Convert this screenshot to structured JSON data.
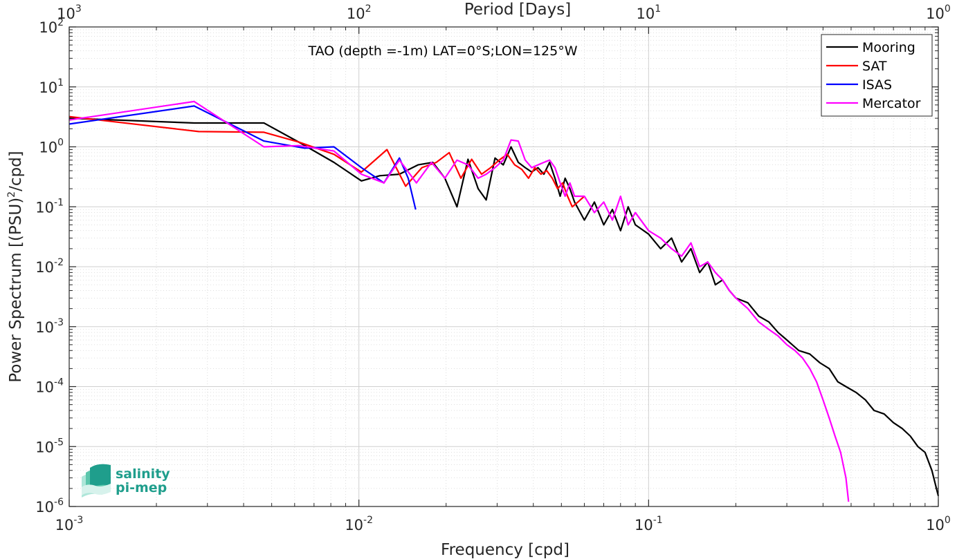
{
  "chart_data": {
    "type": "line",
    "title": "TAO (depth =-1m) LAT=0°S;LON=125°W",
    "xlabel": "Frequency [cpd]",
    "ylabel": "Power Spectrum [(PSU)²/cpd]",
    "ylabel_parts": {
      "pre": "Power Spectrum [(PSU)",
      "sup": "2",
      "post": "/cpd]"
    },
    "top_xlabel": "Period [Days]",
    "xscale": "log",
    "yscale": "log",
    "xlim": [
      0.001,
      1
    ],
    "ylim": [
      1e-06,
      100
    ],
    "grid": true,
    "minor_grid": true,
    "legend_position": "top-right",
    "x_ticks": [
      {
        "value": 0.001,
        "base": "10",
        "exp": "-3"
      },
      {
        "value": 0.01,
        "base": "10",
        "exp": "-2"
      },
      {
        "value": 0.1,
        "base": "10",
        "exp": "-1"
      },
      {
        "value": 1,
        "base": "10",
        "exp": "0"
      }
    ],
    "top_ticks": [
      {
        "value": 0.001,
        "base": "10",
        "exp": "3"
      },
      {
        "value": 0.01,
        "base": "10",
        "exp": "2"
      },
      {
        "value": 0.1,
        "base": "10",
        "exp": "1"
      },
      {
        "value": 1,
        "base": "10",
        "exp": "0"
      }
    ],
    "y_ticks": [
      {
        "value": 100,
        "base": "10",
        "exp": "2"
      },
      {
        "value": 10,
        "base": "10",
        "exp": "1"
      },
      {
        "value": 1,
        "base": "10",
        "exp": "0"
      },
      {
        "value": 0.1,
        "base": "10",
        "exp": "-1"
      },
      {
        "value": 0.01,
        "base": "10",
        "exp": "-2"
      },
      {
        "value": 0.001,
        "base": "10",
        "exp": "-3"
      },
      {
        "value": 0.0001,
        "base": "10",
        "exp": "-4"
      },
      {
        "value": 1e-05,
        "base": "10",
        "exp": "-5"
      },
      {
        "value": 1e-06,
        "base": "10",
        "exp": "-6"
      }
    ],
    "series": [
      {
        "name": "Mooring",
        "color": "#000000",
        "x": [
          0.001,
          0.0027,
          0.0047,
          0.0062,
          0.0082,
          0.0102,
          0.0118,
          0.0138,
          0.016,
          0.018,
          0.0198,
          0.0218,
          0.0238,
          0.0258,
          0.0275,
          0.0295,
          0.0315,
          0.0335,
          0.0355,
          0.0375,
          0.0395,
          0.0415,
          0.0435,
          0.0455,
          0.0475,
          0.0495,
          0.0515,
          0.0535,
          0.0555,
          0.06,
          0.065,
          0.07,
          0.075,
          0.08,
          0.085,
          0.09,
          0.1,
          0.11,
          0.12,
          0.13,
          0.14,
          0.15,
          0.16,
          0.17,
          0.18,
          0.19,
          0.2,
          0.22,
          0.24,
          0.26,
          0.28,
          0.3,
          0.33,
          0.36,
          0.39,
          0.42,
          0.45,
          0.48,
          0.52,
          0.56,
          0.6,
          0.65,
          0.7,
          0.75,
          0.8,
          0.85,
          0.9,
          0.95,
          1.0
        ],
        "y": [
          3.0,
          2.5,
          2.5,
          1.2,
          0.55,
          0.27,
          0.33,
          0.35,
          0.5,
          0.55,
          0.3,
          0.1,
          0.62,
          0.2,
          0.13,
          0.65,
          0.5,
          1.0,
          0.55,
          0.45,
          0.38,
          0.45,
          0.35,
          0.55,
          0.3,
          0.15,
          0.3,
          0.2,
          0.12,
          0.06,
          0.12,
          0.05,
          0.09,
          0.04,
          0.1,
          0.05,
          0.035,
          0.02,
          0.03,
          0.012,
          0.02,
          0.008,
          0.012,
          0.005,
          0.006,
          0.004,
          0.003,
          0.0025,
          0.0015,
          0.0012,
          0.0008,
          0.0006,
          0.0004,
          0.00035,
          0.00025,
          0.0002,
          0.00012,
          0.0001,
          8e-05,
          6e-05,
          4e-05,
          3.5e-05,
          2.5e-05,
          2e-05,
          1.5e-05,
          1e-05,
          8e-06,
          4e-06,
          1.5e-06
        ]
      },
      {
        "name": "SAT",
        "color": "#ff0000",
        "x": [
          0.001,
          0.0028,
          0.0047,
          0.0062,
          0.0082,
          0.0102,
          0.0125,
          0.0145,
          0.0165,
          0.0185,
          0.0205,
          0.0225,
          0.0245,
          0.0265,
          0.0285,
          0.0305,
          0.0325,
          0.0345,
          0.0365,
          0.0385,
          0.0405,
          0.0425,
          0.0445,
          0.0465,
          0.0485,
          0.0505,
          0.0525,
          0.0545,
          0.057,
          0.06
        ],
        "y": [
          3.2,
          1.8,
          1.75,
          1.2,
          0.75,
          0.38,
          0.9,
          0.22,
          0.45,
          0.55,
          0.8,
          0.3,
          0.62,
          0.35,
          0.45,
          0.6,
          0.75,
          0.5,
          0.42,
          0.3,
          0.45,
          0.35,
          0.4,
          0.3,
          0.2,
          0.25,
          0.15,
          0.1,
          0.12,
          0.15
        ]
      },
      {
        "name": "ISAS",
        "color": "#0000ff",
        "x": [
          0.001,
          0.0027,
          0.0047,
          0.0065,
          0.0082,
          0.0102,
          0.0122,
          0.0138,
          0.0148,
          0.0157
        ],
        "y": [
          2.4,
          4.8,
          1.25,
          0.95,
          1.0,
          0.45,
          0.25,
          0.65,
          0.3,
          0.09
        ]
      },
      {
        "name": "Mercator",
        "color": "#ff00ff",
        "x": [
          0.001,
          0.0027,
          0.0047,
          0.0062,
          0.0082,
          0.0102,
          0.0122,
          0.0138,
          0.0158,
          0.0178,
          0.0198,
          0.0218,
          0.0238,
          0.0258,
          0.0275,
          0.0295,
          0.0315,
          0.0335,
          0.0355,
          0.0375,
          0.0395,
          0.0415,
          0.0435,
          0.0455,
          0.0475,
          0.0495,
          0.0515,
          0.0535,
          0.0555,
          0.06,
          0.065,
          0.07,
          0.075,
          0.08,
          0.085,
          0.09,
          0.1,
          0.11,
          0.12,
          0.13,
          0.14,
          0.15,
          0.16,
          0.17,
          0.18,
          0.19,
          0.2,
          0.22,
          0.24,
          0.26,
          0.28,
          0.3,
          0.32,
          0.34,
          0.36,
          0.38,
          0.4,
          0.42,
          0.44,
          0.46,
          0.48,
          0.49
        ],
        "y": [
          2.8,
          5.7,
          1.0,
          1.05,
          0.85,
          0.35,
          0.25,
          0.6,
          0.25,
          0.55,
          0.3,
          0.6,
          0.5,
          0.3,
          0.35,
          0.45,
          0.6,
          1.3,
          1.25,
          0.6,
          0.45,
          0.5,
          0.55,
          0.6,
          0.45,
          0.25,
          0.15,
          0.25,
          0.15,
          0.15,
          0.08,
          0.12,
          0.06,
          0.15,
          0.05,
          0.08,
          0.04,
          0.03,
          0.02,
          0.015,
          0.025,
          0.01,
          0.012,
          0.008,
          0.006,
          0.004,
          0.003,
          0.002,
          0.0012,
          0.0009,
          0.0007,
          0.0005,
          0.0004,
          0.0003,
          0.0002,
          0.00012,
          6e-05,
          3e-05,
          1.5e-05,
          8e-06,
          3e-06,
          1.2e-06
        ]
      }
    ]
  },
  "logo": {
    "line1": "salinity",
    "line2": "pi-mep"
  }
}
